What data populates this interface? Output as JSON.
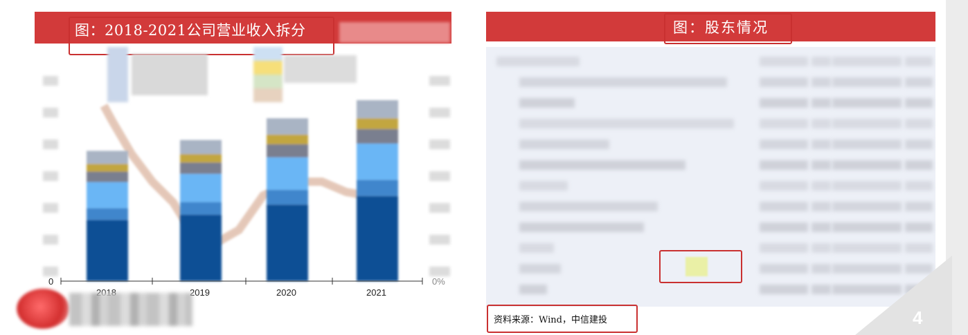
{
  "left_panel": {
    "title": "图：2018-2021公司营业收入拆分",
    "chart_data": {
      "type": "bar",
      "categories": [
        "2018",
        "2019",
        "2020",
        "2021"
      ],
      "y_tick_left_min": "0",
      "y_tick_right_min": "0%",
      "series_heights_relative": [
        0.72,
        0.78,
        0.9,
        1.0
      ],
      "line_note": "obscured"
    }
  },
  "right_panel": {
    "title": "图：股东情况",
    "source": "资料来源：Wind，中信建投"
  },
  "page_number": "4",
  "colors": {
    "banner_red": "#d23a3a",
    "box_red": "#c93030",
    "bar_dark_blue": "#0d4f95",
    "bar_light_blue": "#6bb6f5"
  }
}
